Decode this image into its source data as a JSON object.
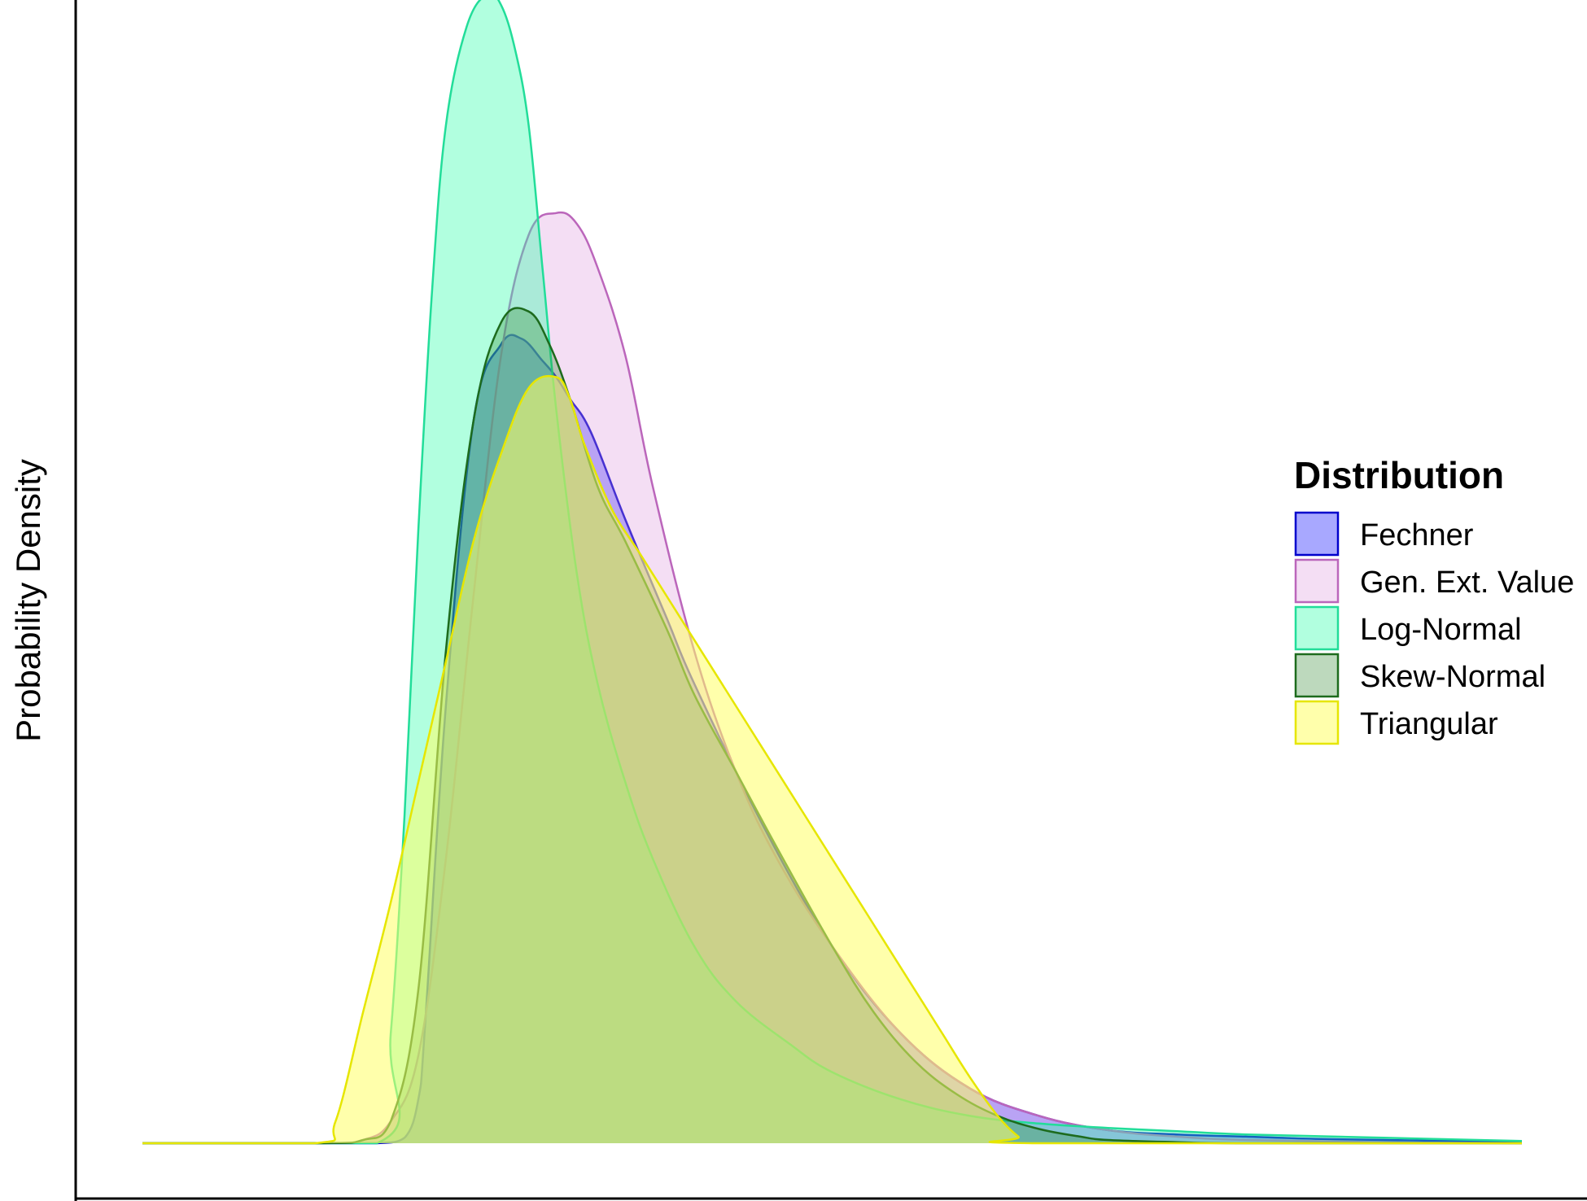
{
  "chart_data": {
    "type": "area",
    "title": "",
    "xlabel": "",
    "ylabel": "Probability Density",
    "x_ticks_shown": false,
    "y_ticks_shown": false,
    "grid": false,
    "xlim": [
      0,
      10
    ],
    "ylim": [
      0,
      1.0
    ],
    "legend": {
      "title": "Distribution",
      "position": "right"
    },
    "series": [
      {
        "name": "Fechner",
        "fill": "#1a1aff",
        "stroke": "#0000cc",
        "fill_opacity": 0.38,
        "x": [
          0,
          1.3,
          1.7,
          1.9,
          2.0,
          2.05,
          2.2,
          2.4,
          2.6,
          2.75,
          2.9,
          3.0,
          3.1,
          3.25,
          3.5,
          3.8,
          4.0,
          4.5,
          5.0,
          5.5,
          6.0,
          6.5,
          7.0,
          7.5,
          8.0,
          8.5,
          9.0,
          9.5,
          10.0
        ],
        "y": [
          0,
          0,
          0.0,
          0.005,
          0.04,
          0.11,
          0.4,
          0.66,
          0.73,
          0.735,
          0.715,
          0.7,
          0.68,
          0.65,
          0.57,
          0.48,
          0.42,
          0.29,
          0.18,
          0.1,
          0.05,
          0.025,
          0.012,
          0.008,
          0.006,
          0.004,
          0.003,
          0.002,
          0.001
        ]
      },
      {
        "name": "Gen. Ext. Value",
        "fill": "#dd99dd",
        "stroke": "#bb66bb",
        "fill_opacity": 0.32,
        "x": [
          0,
          1.3,
          1.6,
          1.8,
          2.0,
          2.2,
          2.4,
          2.6,
          2.8,
          3.0,
          3.15,
          3.3,
          3.5,
          3.7,
          4.0,
          4.3,
          4.6,
          5.0,
          5.5,
          6.0,
          6.5,
          7.0,
          7.5,
          8.0,
          9.0,
          10.0
        ],
        "y": [
          0,
          0,
          0.003,
          0.02,
          0.08,
          0.26,
          0.5,
          0.72,
          0.83,
          0.85,
          0.84,
          0.8,
          0.72,
          0.6,
          0.45,
          0.34,
          0.26,
          0.18,
          0.1,
          0.05,
          0.025,
          0.012,
          0.006,
          0.003,
          0.001,
          0.0
        ]
      },
      {
        "name": "Log-Normal",
        "fill": "#33ffaa",
        "stroke": "#22dd99",
        "fill_opacity": 0.38,
        "x": [
          0,
          1.7,
          1.8,
          1.9,
          2.0,
          2.1,
          2.2,
          2.35,
          2.5,
          2.6,
          2.7,
          2.8,
          2.9,
          3.0,
          3.15,
          3.3,
          3.5,
          3.7,
          4.0,
          4.3,
          4.7,
          5.0,
          5.5,
          6.0,
          6.5,
          7.0,
          7.5,
          8.0,
          9.0,
          10.0
        ],
        "y": [
          0,
          0,
          0.1,
          0.3,
          0.56,
          0.78,
          0.93,
          1.02,
          1.05,
          1.04,
          1.0,
          0.93,
          0.8,
          0.67,
          0.52,
          0.42,
          0.33,
          0.26,
          0.18,
          0.13,
          0.09,
          0.065,
          0.04,
          0.025,
          0.018,
          0.014,
          0.011,
          0.008,
          0.005,
          0.002
        ]
      },
      {
        "name": "Skew-Normal",
        "fill": "#338833",
        "stroke": "#1d6b1d",
        "fill_opacity": 0.32,
        "x": [
          0,
          1.3,
          1.6,
          1.8,
          2.0,
          2.2,
          2.4,
          2.6,
          2.8,
          2.95,
          3.1,
          3.3,
          3.5,
          3.8,
          4.0,
          4.3,
          4.6,
          5.0,
          5.3,
          5.6,
          5.9,
          6.2,
          6.5,
          6.8,
          7.0,
          7.5,
          8.0,
          10.0
        ],
        "y": [
          0,
          0,
          0.003,
          0.02,
          0.14,
          0.45,
          0.66,
          0.75,
          0.76,
          0.73,
          0.68,
          0.6,
          0.55,
          0.47,
          0.41,
          0.34,
          0.27,
          0.18,
          0.12,
          0.075,
          0.045,
          0.025,
          0.013,
          0.006,
          0.003,
          0.001,
          0.0,
          0.0
        ]
      },
      {
        "name": "Triangular",
        "fill": "#ffff66",
        "stroke": "#e6e600",
        "fill_opacity": 0.55,
        "x": [
          0,
          1.25,
          1.4,
          1.6,
          1.8,
          2.0,
          2.2,
          2.4,
          2.6,
          2.8,
          3.0,
          3.1,
          3.2,
          3.4,
          3.6,
          3.8,
          4.0,
          4.2,
          4.4,
          4.6,
          4.8,
          5.0,
          5.2,
          5.4,
          5.6,
          5.8,
          6.0,
          6.2,
          6.35,
          6.45,
          10.0
        ],
        "y": [
          0,
          0,
          0.02,
          0.12,
          0.22,
          0.33,
          0.44,
          0.55,
          0.63,
          0.69,
          0.7,
          0.68,
          0.64,
          0.58,
          0.54,
          0.5,
          0.46,
          0.42,
          0.38,
          0.34,
          0.3,
          0.26,
          0.22,
          0.18,
          0.14,
          0.1,
          0.06,
          0.025,
          0.006,
          0.0,
          0.0
        ]
      }
    ]
  }
}
